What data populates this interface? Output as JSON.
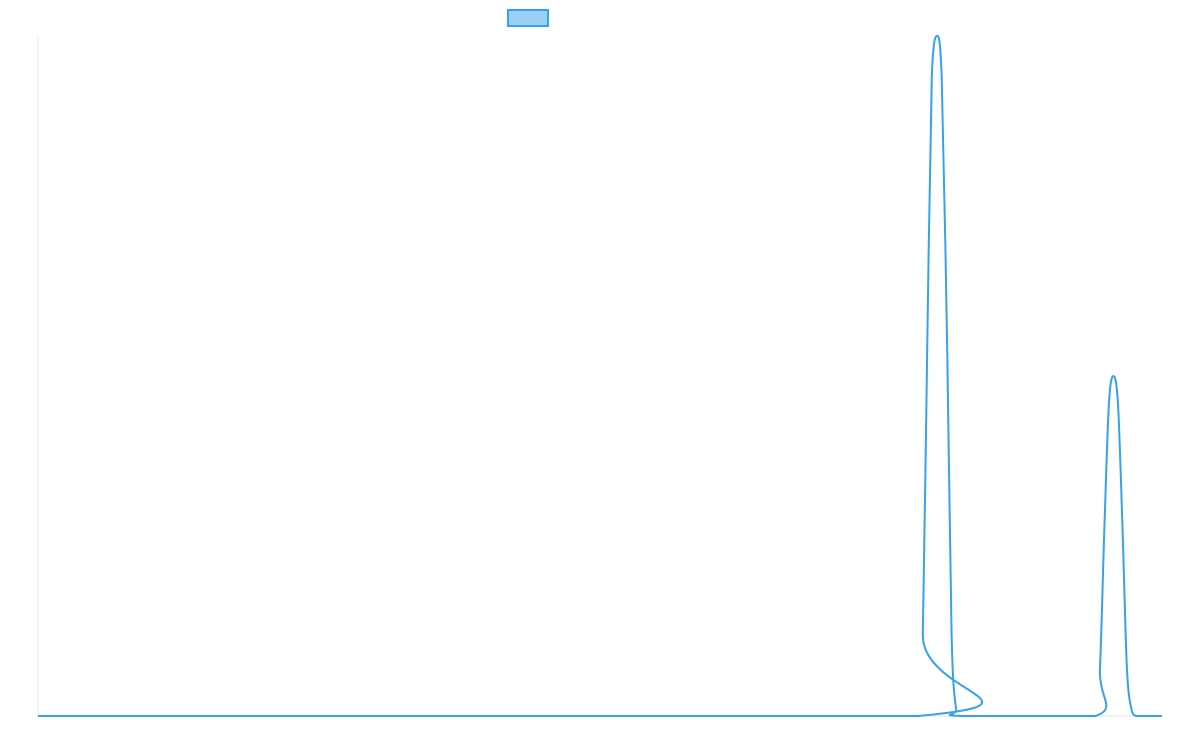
{
  "chart_data": {
    "type": "line",
    "title": "",
    "xlabel": "",
    "ylabel": "",
    "x": [
      0,
      97.9,
      98.4,
      98.9,
      99.4,
      100,
      100.5,
      101.1,
      101.6,
      102.1,
      102.6,
      117.6,
      118.1,
      118.6,
      119.1,
      119.6,
      120.1,
      120.6,
      121.1,
      121.6,
      122.1,
      122.6,
      125
    ],
    "xlim": [
      0,
      125
    ],
    "ylim": [
      0,
      1
    ],
    "grid": false,
    "legend": {
      "position": "top-center",
      "swatch_only": true
    },
    "series": [
      {
        "color": "#36a2eb",
        "fill": "#9ad0f5",
        "values": [
          0,
          0,
          0.12,
          0.55,
          0.94,
          1.0,
          0.94,
          0.55,
          0.12,
          0.01,
          0,
          0,
          0.07,
          0.28,
          0.46,
          0.5,
          0.46,
          0.28,
          0.07,
          0.01,
          0,
          0,
          0
        ]
      }
    ],
    "axis_color": "#e5e5e5"
  }
}
